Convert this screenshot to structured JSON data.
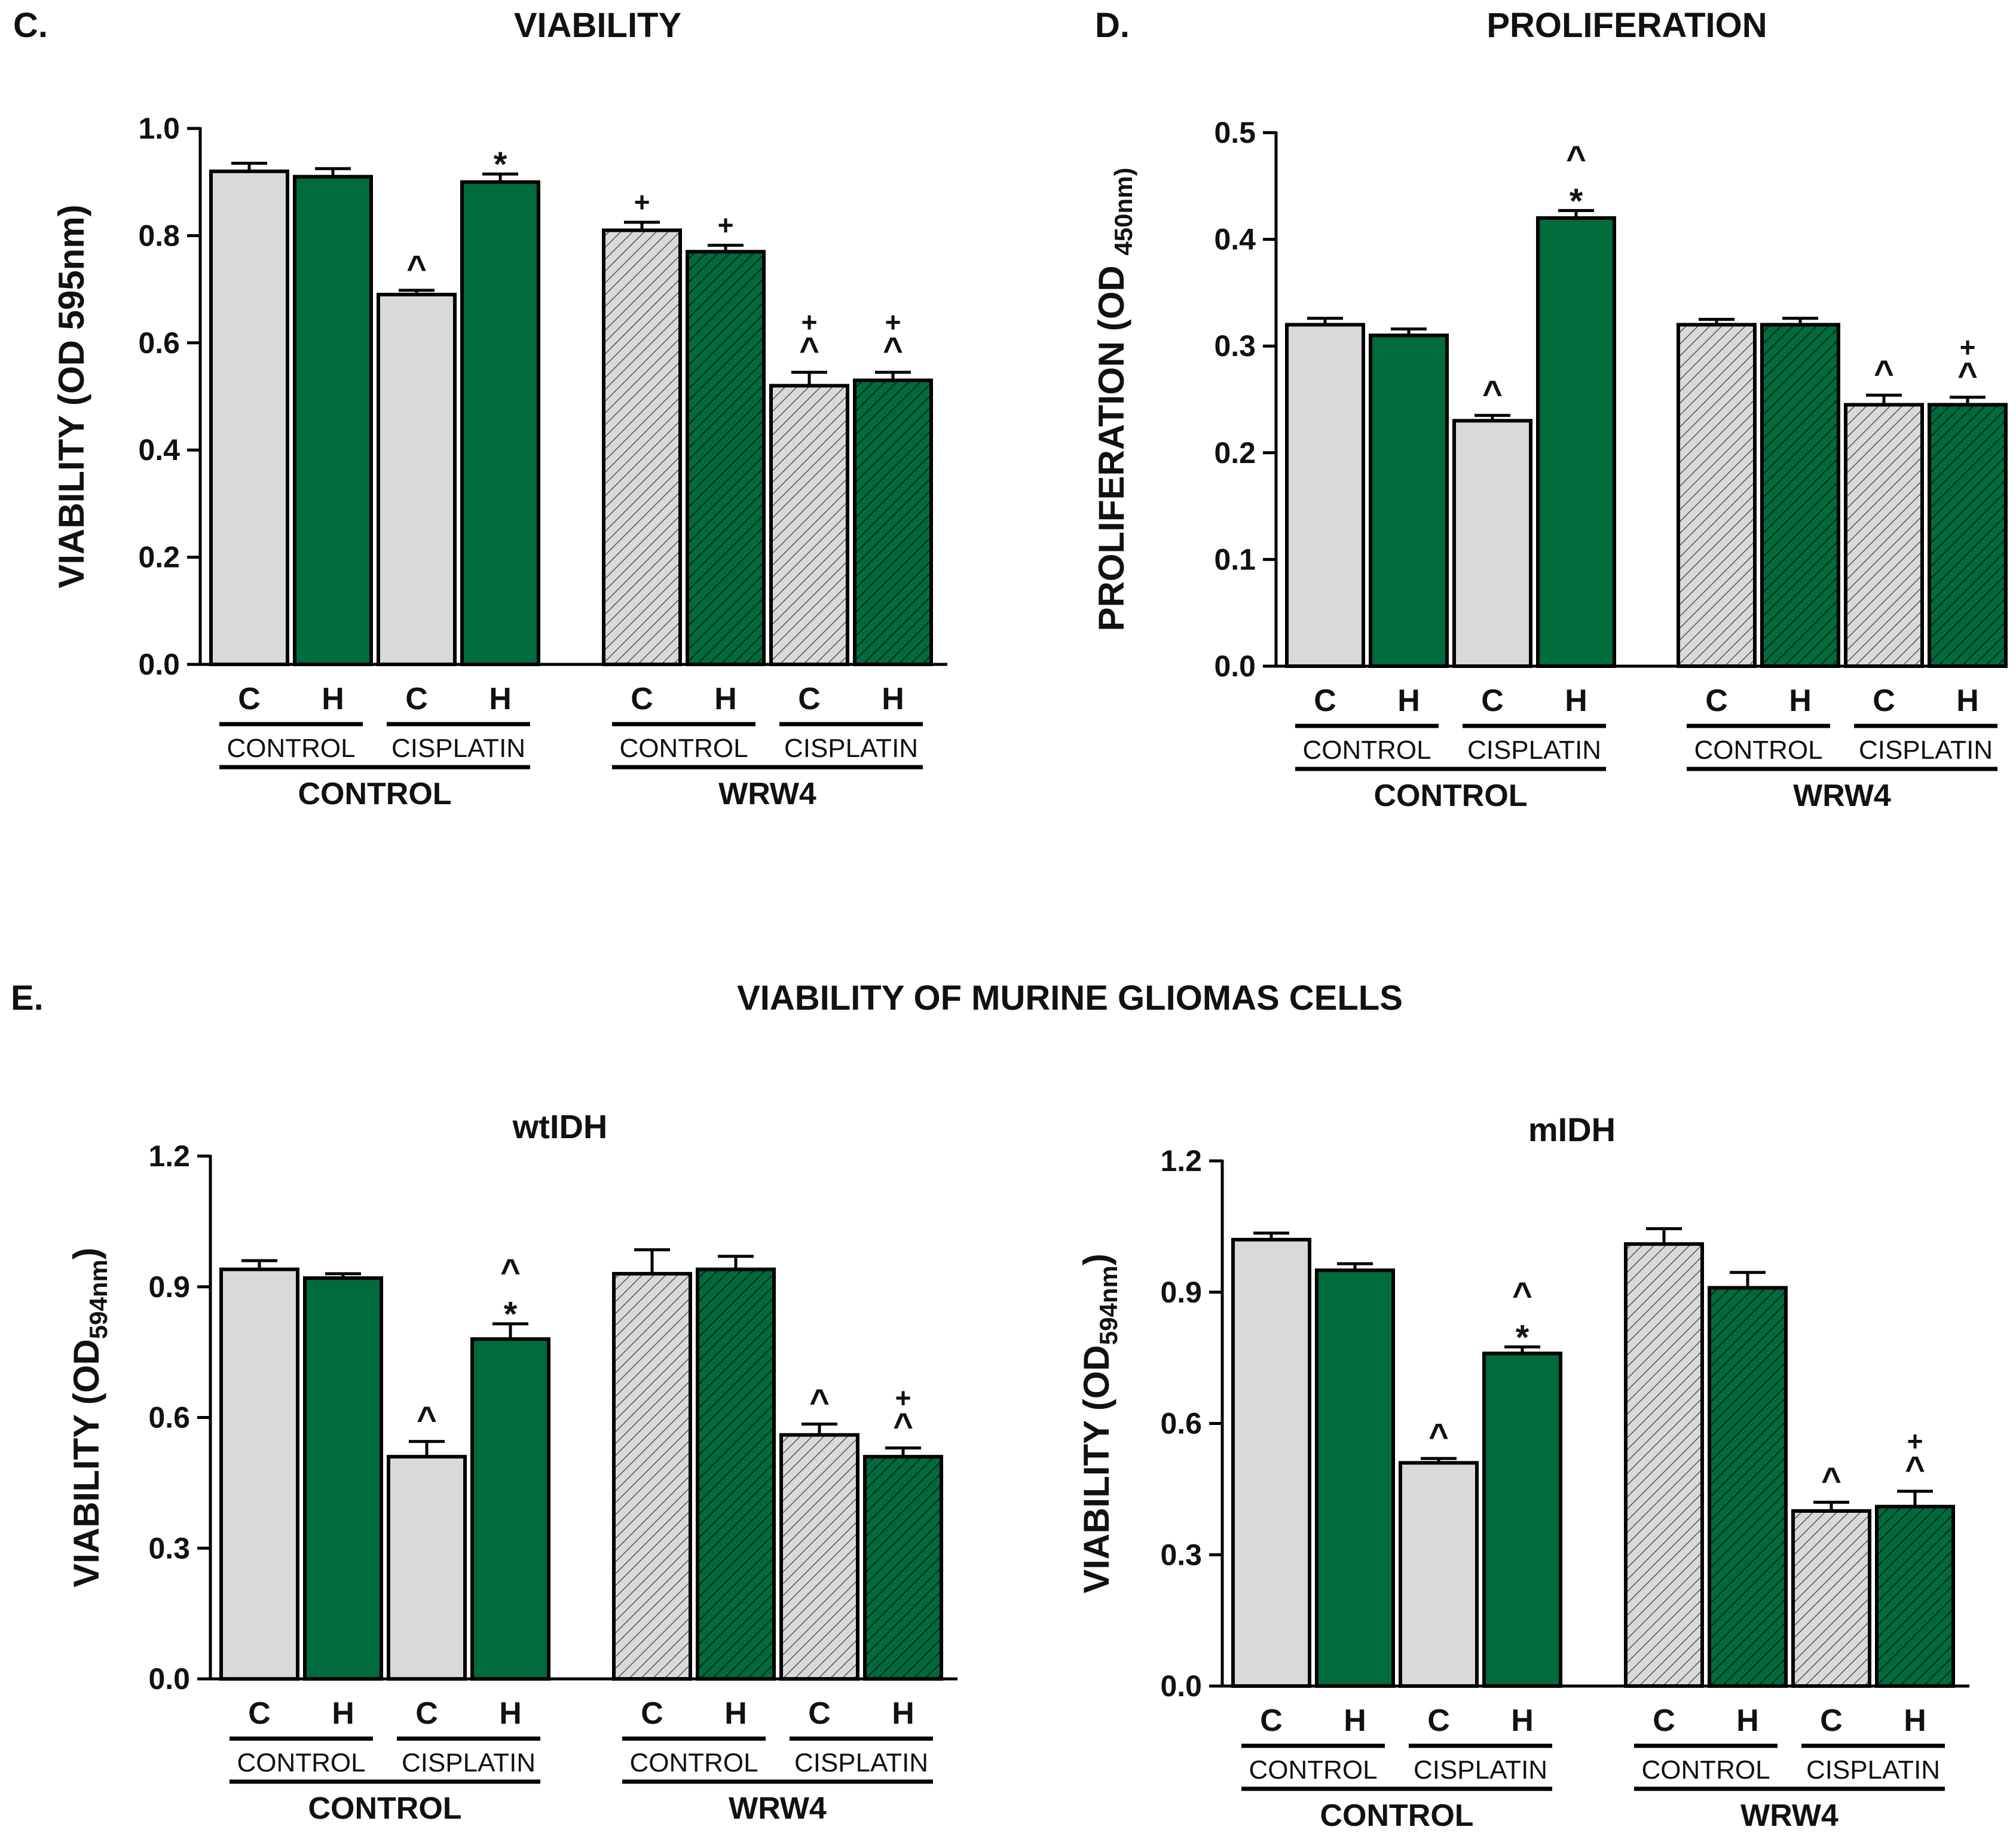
{
  "panels": {
    "c": {
      "letter": "C.",
      "title": "VIABILITY"
    },
    "d": {
      "letter": "D.",
      "title": "PROLIFERATION"
    },
    "e": {
      "letter": "E.",
      "title": "VIABILITY OF MURINE GLIOMAS CELLS"
    }
  },
  "colors": {
    "gray": "#d9d9d9",
    "green": "#006b3c",
    "stroke": "#000000"
  },
  "chart_data": [
    {
      "id": "c",
      "type": "bar",
      "title": "",
      "ylabel_main": "VIABILITY (OD 595nm)",
      "ylabel_sub": "",
      "ylim": [
        0,
        1.0
      ],
      "yticks": [
        "0.0",
        "0.2",
        "0.4",
        "0.6",
        "0.8",
        "1.0"
      ],
      "ytick_values": [
        0,
        0.2,
        0.4,
        0.6,
        0.8,
        1.0
      ],
      "categories": [
        "C",
        "H",
        "C",
        "H",
        "C",
        "H",
        "C",
        "H"
      ],
      "treatments": [
        "CONTROL",
        "CISPLATIN",
        "CONTROL",
        "CISPLATIN"
      ],
      "groups": [
        "CONTROL",
        "WRW4"
      ],
      "series": [
        {
          "name": "viability",
          "values": [
            0.92,
            0.91,
            0.69,
            0.9,
            0.81,
            0.77,
            0.52,
            0.53
          ],
          "errors": [
            0.015,
            0.015,
            0.008,
            0.015,
            0.015,
            0.012,
            0.025,
            0.015
          ]
        }
      ],
      "annotations": [
        [],
        [],
        [
          "^"
        ],
        [
          "*"
        ],
        [
          "+"
        ],
        [
          "+"
        ],
        [
          "^",
          "+"
        ],
        [
          "^",
          "+"
        ]
      ]
    },
    {
      "id": "d",
      "type": "bar",
      "title": "",
      "ylabel_main": "PROLIFERATION (OD ",
      "ylabel_sub": "450nm)",
      "ylim": [
        0,
        0.5
      ],
      "yticks": [
        "0.0",
        "0.1",
        "0.2",
        "0.3",
        "0.4",
        "0.5"
      ],
      "ytick_values": [
        0,
        0.1,
        0.2,
        0.3,
        0.4,
        0.5
      ],
      "categories": [
        "C",
        "H",
        "C",
        "H",
        "C",
        "H",
        "C",
        "H"
      ],
      "treatments": [
        "CONTROL",
        "CISPLATIN",
        "CONTROL",
        "CISPLATIN"
      ],
      "groups": [
        "CONTROL",
        "WRW4"
      ],
      "series": [
        {
          "name": "proliferation",
          "values": [
            0.32,
            0.31,
            0.23,
            0.42,
            0.32,
            0.32,
            0.245,
            0.245
          ],
          "errors": [
            0.006,
            0.006,
            0.005,
            0.007,
            0.005,
            0.006,
            0.009,
            0.007
          ]
        }
      ],
      "annotations": [
        [],
        [],
        [
          "^"
        ],
        [
          "*",
          "^"
        ],
        [],
        [],
        [
          "^"
        ],
        [
          "^",
          "+"
        ]
      ]
    },
    {
      "id": "e1",
      "type": "bar",
      "title": "wtIDH",
      "ylabel_main": "VIABILITY (OD",
      "ylabel_sub": "594nm",
      "ylabel_end": ")",
      "ylim": [
        0,
        1.2
      ],
      "yticks": [
        "0.0",
        "0.3",
        "0.6",
        "0.9",
        "1.2"
      ],
      "ytick_values": [
        0,
        0.3,
        0.6,
        0.9,
        1.2
      ],
      "categories": [
        "C",
        "H",
        "C",
        "H",
        "C",
        "H",
        "C",
        "H"
      ],
      "treatments": [
        "CONTROL",
        "CISPLATIN",
        "CONTROL",
        "CISPLATIN"
      ],
      "groups": [
        "CONTROL",
        "WRW4"
      ],
      "series": [
        {
          "name": "viability",
          "values": [
            0.94,
            0.92,
            0.51,
            0.78,
            0.93,
            0.94,
            0.56,
            0.51
          ],
          "errors": [
            0.02,
            0.01,
            0.035,
            0.035,
            0.055,
            0.03,
            0.025,
            0.02
          ]
        }
      ],
      "annotations": [
        [],
        [],
        [
          "^"
        ],
        [
          "*",
          "^"
        ],
        [],
        [],
        [
          "^"
        ],
        [
          "^",
          "+"
        ]
      ]
    },
    {
      "id": "e2",
      "type": "bar",
      "title": "mIDH",
      "ylabel_main": "VIABILITY (OD",
      "ylabel_sub": "594nm",
      "ylabel_end": ")",
      "ylim": [
        0,
        1.2
      ],
      "yticks": [
        "0.0",
        "0.3",
        "0.6",
        "0.9",
        "1.2"
      ],
      "ytick_values": [
        0,
        0.3,
        0.6,
        0.9,
        1.2
      ],
      "categories": [
        "C",
        "H",
        "C",
        "H",
        "C",
        "H",
        "C",
        "H"
      ],
      "treatments": [
        "CONTROL",
        "CISPLATIN",
        "CONTROL",
        "CISPLATIN"
      ],
      "groups": [
        "CONTROL",
        "WRW4"
      ],
      "series": [
        {
          "name": "viability",
          "values": [
            1.02,
            0.95,
            0.51,
            0.76,
            1.01,
            0.91,
            0.4,
            0.41
          ],
          "errors": [
            0.015,
            0.015,
            0.01,
            0.015,
            0.035,
            0.035,
            0.02,
            0.035
          ]
        }
      ],
      "annotations": [
        [],
        [],
        [
          "^"
        ],
        [
          "*",
          "^"
        ],
        [],
        [],
        [
          "^"
        ],
        [
          "^",
          "+"
        ]
      ]
    }
  ]
}
